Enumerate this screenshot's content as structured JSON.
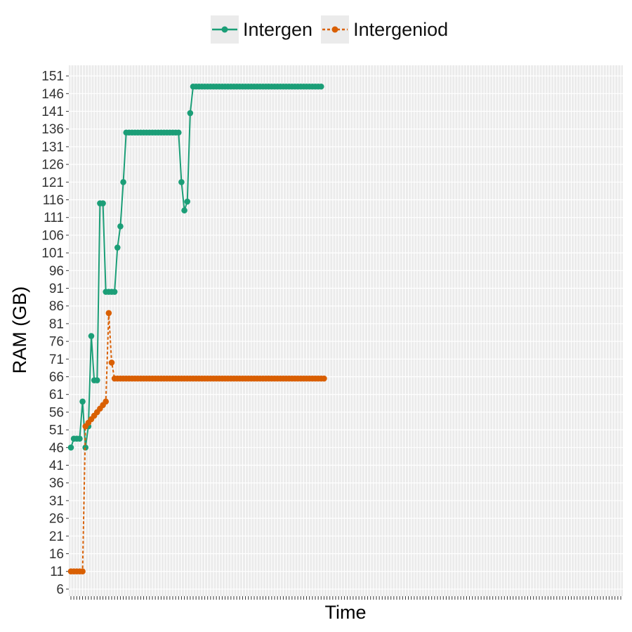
{
  "chart_data": {
    "type": "line",
    "xlabel": "Time",
    "ylabel": "RAM (GB)",
    "ylim": [
      4,
      154
    ],
    "yticks": [
      6,
      11,
      16,
      21,
      26,
      31,
      36,
      41,
      46,
      51,
      56,
      61,
      66,
      71,
      76,
      81,
      86,
      91,
      96,
      101,
      106,
      111,
      116,
      121,
      126,
      131,
      136,
      141,
      146,
      151
    ],
    "x_count": 190,
    "x_tick_labels_shown": false,
    "grid": true,
    "legend": "top",
    "series": [
      {
        "name": "Intergen",
        "color": "#1b9e77",
        "line_style": "solid",
        "points": [
          [
            1,
            46
          ],
          [
            2,
            48.5
          ],
          [
            3,
            48.5
          ],
          [
            4,
            48.5
          ],
          [
            5,
            59
          ],
          [
            6,
            46
          ],
          [
            7,
            52
          ],
          [
            8,
            77.5
          ],
          [
            9,
            65
          ],
          [
            10,
            65
          ],
          [
            11,
            115
          ],
          [
            12,
            115
          ],
          [
            13,
            90
          ],
          [
            14,
            90
          ],
          [
            15,
            90
          ],
          [
            16,
            90
          ],
          [
            17,
            102.5
          ],
          [
            18,
            108.5
          ],
          [
            19,
            121
          ],
          [
            20,
            135
          ],
          [
            21,
            135
          ],
          [
            22,
            135
          ],
          [
            23,
            135
          ],
          [
            24,
            135
          ],
          [
            25,
            135
          ],
          [
            26,
            135
          ],
          [
            27,
            135
          ],
          [
            28,
            135
          ],
          [
            29,
            135
          ],
          [
            30,
            135
          ],
          [
            31,
            135
          ],
          [
            32,
            135
          ],
          [
            33,
            135
          ],
          [
            34,
            135
          ],
          [
            35,
            135
          ],
          [
            36,
            135
          ],
          [
            37,
            135
          ],
          [
            38,
            135
          ],
          [
            39,
            121
          ],
          [
            40,
            113
          ],
          [
            41,
            115.5
          ],
          [
            42,
            140.5
          ],
          [
            43,
            148
          ],
          [
            44,
            148
          ],
          [
            45,
            148
          ],
          [
            46,
            148
          ],
          [
            47,
            148
          ],
          [
            48,
            148
          ],
          [
            49,
            148
          ],
          [
            50,
            148
          ],
          [
            51,
            148
          ],
          [
            52,
            148
          ],
          [
            53,
            148
          ],
          [
            54,
            148
          ],
          [
            55,
            148
          ],
          [
            56,
            148
          ],
          [
            57,
            148
          ],
          [
            58,
            148
          ],
          [
            59,
            148
          ],
          [
            60,
            148
          ],
          [
            61,
            148
          ],
          [
            62,
            148
          ],
          [
            63,
            148
          ],
          [
            64,
            148
          ],
          [
            65,
            148
          ],
          [
            66,
            148
          ],
          [
            67,
            148
          ],
          [
            68,
            148
          ],
          [
            69,
            148
          ],
          [
            70,
            148
          ],
          [
            71,
            148
          ],
          [
            72,
            148
          ],
          [
            73,
            148
          ],
          [
            74,
            148
          ],
          [
            75,
            148
          ],
          [
            76,
            148
          ],
          [
            77,
            148
          ],
          [
            78,
            148
          ],
          [
            79,
            148
          ],
          [
            80,
            148
          ],
          [
            81,
            148
          ],
          [
            82,
            148
          ],
          [
            83,
            148
          ],
          [
            84,
            148
          ],
          [
            85,
            148
          ],
          [
            86,
            148
          ],
          [
            87,
            148
          ]
        ]
      },
      {
        "name": "Intergeniod",
        "color": "#d95f02",
        "line_style": "dashed",
        "points": [
          [
            1,
            11
          ],
          [
            2,
            11
          ],
          [
            3,
            11
          ],
          [
            4,
            11
          ],
          [
            5,
            11
          ],
          [
            6,
            52
          ],
          [
            7,
            53
          ],
          [
            8,
            54
          ],
          [
            9,
            55
          ],
          [
            10,
            56
          ],
          [
            11,
            57
          ],
          [
            12,
            58
          ],
          [
            13,
            59
          ],
          [
            14,
            84
          ],
          [
            15,
            70
          ],
          [
            16,
            65.5
          ],
          [
            17,
            65.5
          ],
          [
            18,
            65.5
          ],
          [
            19,
            65.5
          ],
          [
            20,
            65.5
          ],
          [
            21,
            65.5
          ],
          [
            22,
            65.5
          ],
          [
            23,
            65.5
          ],
          [
            24,
            65.5
          ],
          [
            25,
            65.5
          ],
          [
            26,
            65.5
          ],
          [
            27,
            65.5
          ],
          [
            28,
            65.5
          ],
          [
            29,
            65.5
          ],
          [
            30,
            65.5
          ],
          [
            31,
            65.5
          ],
          [
            32,
            65.5
          ],
          [
            33,
            65.5
          ],
          [
            34,
            65.5
          ],
          [
            35,
            65.5
          ],
          [
            36,
            65.5
          ],
          [
            37,
            65.5
          ],
          [
            38,
            65.5
          ],
          [
            39,
            65.5
          ],
          [
            40,
            65.5
          ],
          [
            41,
            65.5
          ],
          [
            42,
            65.5
          ],
          [
            43,
            65.5
          ],
          [
            44,
            65.5
          ],
          [
            45,
            65.5
          ],
          [
            46,
            65.5
          ],
          [
            47,
            65.5
          ],
          [
            48,
            65.5
          ],
          [
            49,
            65.5
          ],
          [
            50,
            65.5
          ],
          [
            51,
            65.5
          ],
          [
            52,
            65.5
          ],
          [
            53,
            65.5
          ],
          [
            54,
            65.5
          ],
          [
            55,
            65.5
          ],
          [
            56,
            65.5
          ],
          [
            57,
            65.5
          ],
          [
            58,
            65.5
          ],
          [
            59,
            65.5
          ],
          [
            60,
            65.5
          ],
          [
            61,
            65.5
          ],
          [
            62,
            65.5
          ],
          [
            63,
            65.5
          ],
          [
            64,
            65.5
          ],
          [
            65,
            65.5
          ],
          [
            66,
            65.5
          ],
          [
            67,
            65.5
          ],
          [
            68,
            65.5
          ],
          [
            69,
            65.5
          ],
          [
            70,
            65.5
          ],
          [
            71,
            65.5
          ],
          [
            72,
            65.5
          ],
          [
            73,
            65.5
          ],
          [
            74,
            65.5
          ],
          [
            75,
            65.5
          ],
          [
            76,
            65.5
          ],
          [
            77,
            65.5
          ],
          [
            78,
            65.5
          ],
          [
            79,
            65.5
          ],
          [
            80,
            65.5
          ],
          [
            81,
            65.5
          ],
          [
            82,
            65.5
          ],
          [
            83,
            65.5
          ],
          [
            84,
            65.5
          ],
          [
            85,
            65.5
          ],
          [
            86,
            65.5
          ],
          [
            87,
            65.5
          ],
          [
            88,
            65.5
          ]
        ]
      }
    ]
  }
}
